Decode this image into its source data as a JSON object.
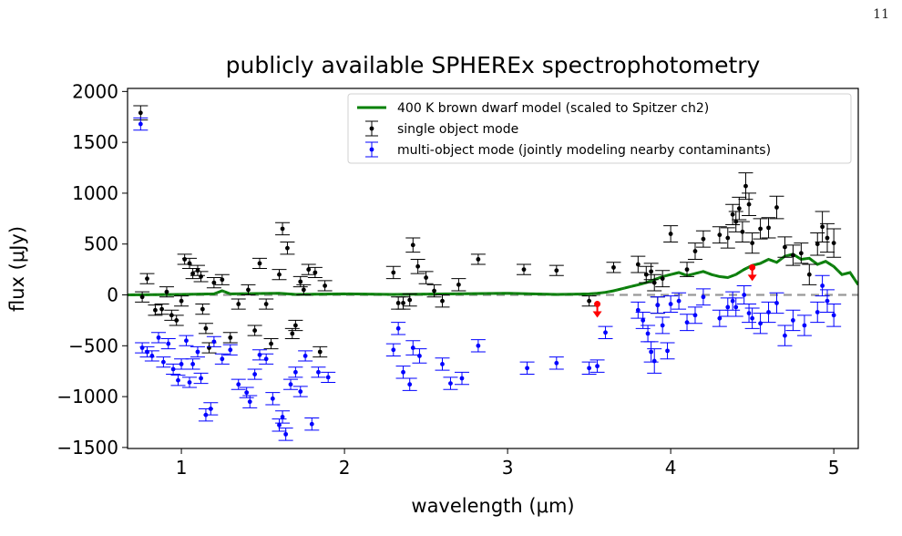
{
  "page": {
    "number": "11"
  },
  "chart_data": {
    "type": "scatter",
    "title": "publicly available SPHEREx spectrophotometry",
    "xlabel": "wavelength (μm)",
    "ylabel": "flux (μJy)",
    "xlim": [
      0.67,
      5.15
    ],
    "ylim": [
      -1510,
      2030
    ],
    "xticks": [
      1,
      2,
      3,
      4,
      5
    ],
    "yticks": [
      -1500,
      -1000,
      -500,
      0,
      500,
      1000,
      1500,
      2000
    ],
    "tick_labels_x": [
      "1",
      "2",
      "3",
      "4",
      "5"
    ],
    "tick_labels_y": [
      "−1500",
      "−1000",
      "−500",
      "0",
      "500",
      "1000",
      "1500",
      "2000"
    ],
    "grid": false,
    "legend_position": "top-right",
    "legend": [
      {
        "label": "400 K brown dwarf model (scaled to Spitzer ch2)",
        "color": "#008000",
        "marker": "line"
      },
      {
        "label": "single object mode",
        "color": "#000000",
        "marker": "errorbar"
      },
      {
        "label": "multi-object mode (jointly modeling nearby contaminants)",
        "color": "#0000ff",
        "marker": "errorbar"
      }
    ],
    "zero_line": {
      "y": 0,
      "color": "#999999",
      "style": "dashed"
    },
    "model": {
      "name": "400 K brown dwarf model (scaled to Spitzer ch2)",
      "color": "#008000",
      "x": [
        0.67,
        1.0,
        1.2,
        1.25,
        1.3,
        1.6,
        1.7,
        2.0,
        2.3,
        3.0,
        3.3,
        3.5,
        3.55,
        3.6,
        3.65,
        3.7,
        3.75,
        3.8,
        3.85,
        3.9,
        3.95,
        4.0,
        4.05,
        4.1,
        4.15,
        4.2,
        4.25,
        4.3,
        4.35,
        4.4,
        4.45,
        4.5,
        4.55,
        4.6,
        4.65,
        4.7,
        4.75,
        4.8,
        4.85,
        4.9,
        4.95,
        5.0,
        5.05,
        5.1,
        5.15
      ],
      "y": [
        0,
        5,
        10,
        40,
        10,
        15,
        5,
        10,
        5,
        15,
        5,
        10,
        15,
        25,
        40,
        60,
        80,
        100,
        120,
        150,
        180,
        200,
        220,
        190,
        210,
        230,
        200,
        180,
        170,
        200,
        250,
        290,
        310,
        350,
        320,
        380,
        400,
        350,
        360,
        300,
        330,
        280,
        200,
        220,
        100
      ]
    },
    "series": [
      {
        "name": "single object mode",
        "color": "#000000",
        "points": [
          [
            0.75,
            1790,
            70
          ],
          [
            0.76,
            -20,
            50
          ],
          [
            0.79,
            160,
            50
          ],
          [
            0.84,
            -150,
            50
          ],
          [
            0.88,
            -140,
            50
          ],
          [
            0.91,
            30,
            50
          ],
          [
            0.94,
            -200,
            50
          ],
          [
            0.97,
            -250,
            50
          ],
          [
            1.0,
            -60,
            50
          ],
          [
            1.02,
            350,
            50
          ],
          [
            1.05,
            310,
            50
          ],
          [
            1.07,
            210,
            50
          ],
          [
            1.1,
            240,
            50
          ],
          [
            1.12,
            180,
            50
          ],
          [
            1.13,
            -140,
            50
          ],
          [
            1.15,
            -330,
            50
          ],
          [
            1.17,
            -520,
            50
          ],
          [
            1.2,
            120,
            50
          ],
          [
            1.25,
            150,
            50
          ],
          [
            1.3,
            -420,
            50
          ],
          [
            1.35,
            -90,
            50
          ],
          [
            1.41,
            50,
            50
          ],
          [
            1.45,
            -350,
            50
          ],
          [
            1.48,
            310,
            50
          ],
          [
            1.52,
            -90,
            50
          ],
          [
            1.55,
            -480,
            50
          ],
          [
            1.6,
            200,
            50
          ],
          [
            1.62,
            650,
            60
          ],
          [
            1.65,
            460,
            60
          ],
          [
            1.68,
            -380,
            50
          ],
          [
            1.7,
            -300,
            50
          ],
          [
            1.73,
            130,
            50
          ],
          [
            1.75,
            50,
            50
          ],
          [
            1.78,
            250,
            50
          ],
          [
            1.82,
            220,
            50
          ],
          [
            1.85,
            -560,
            50
          ],
          [
            1.88,
            90,
            50
          ],
          [
            2.3,
            220,
            60
          ],
          [
            2.33,
            -80,
            60
          ],
          [
            2.36,
            -80,
            60
          ],
          [
            2.4,
            -50,
            60
          ],
          [
            2.42,
            490,
            70
          ],
          [
            2.45,
            280,
            70
          ],
          [
            2.5,
            170,
            60
          ],
          [
            2.55,
            40,
            60
          ],
          [
            2.6,
            -60,
            60
          ],
          [
            2.7,
            100,
            60
          ],
          [
            2.82,
            350,
            50
          ],
          [
            3.1,
            250,
            50
          ],
          [
            3.3,
            240,
            50
          ],
          [
            3.5,
            -60,
            50
          ],
          [
            3.65,
            270,
            50
          ],
          [
            3.8,
            300,
            80
          ],
          [
            3.85,
            200,
            80
          ],
          [
            3.88,
            230,
            80
          ],
          [
            3.9,
            120,
            80
          ],
          [
            3.92,
            -100,
            80
          ],
          [
            3.95,
            160,
            80
          ],
          [
            4.0,
            600,
            80
          ],
          [
            4.1,
            250,
            70
          ],
          [
            4.15,
            430,
            80
          ],
          [
            4.2,
            550,
            80
          ],
          [
            4.3,
            590,
            80
          ],
          [
            4.35,
            560,
            100
          ],
          [
            4.38,
            790,
            100
          ],
          [
            4.4,
            720,
            100
          ],
          [
            4.42,
            850,
            110
          ],
          [
            4.44,
            620,
            100
          ],
          [
            4.46,
            1070,
            130
          ],
          [
            4.48,
            890,
            110
          ],
          [
            4.5,
            510,
            100
          ],
          [
            4.55,
            650,
            100
          ],
          [
            4.6,
            660,
            100
          ],
          [
            4.65,
            860,
            110
          ],
          [
            4.7,
            470,
            100
          ],
          [
            4.75,
            390,
            100
          ],
          [
            4.8,
            410,
            100
          ],
          [
            4.85,
            200,
            100
          ],
          [
            4.9,
            500,
            110
          ],
          [
            4.93,
            670,
            150
          ],
          [
            4.96,
            560,
            140
          ],
          [
            5.0,
            510,
            140
          ]
        ]
      },
      {
        "name": "multi-object mode (jointly modeling nearby contaminants)",
        "color": "#0000ff",
        "points": [
          [
            0.75,
            1680,
            60
          ],
          [
            0.76,
            -520,
            50
          ],
          [
            0.79,
            -560,
            50
          ],
          [
            0.82,
            -600,
            50
          ],
          [
            0.86,
            -420,
            50
          ],
          [
            0.89,
            -660,
            50
          ],
          [
            0.92,
            -480,
            50
          ],
          [
            0.95,
            -730,
            50
          ],
          [
            0.98,
            -840,
            50
          ],
          [
            1.0,
            -680,
            50
          ],
          [
            1.03,
            -450,
            50
          ],
          [
            1.05,
            -860,
            50
          ],
          [
            1.07,
            -680,
            50
          ],
          [
            1.1,
            -560,
            50
          ],
          [
            1.12,
            -820,
            50
          ],
          [
            1.15,
            -1180,
            60
          ],
          [
            1.18,
            -1120,
            60
          ],
          [
            1.2,
            -460,
            50
          ],
          [
            1.25,
            -630,
            50
          ],
          [
            1.3,
            -540,
            50
          ],
          [
            1.35,
            -880,
            50
          ],
          [
            1.4,
            -960,
            50
          ],
          [
            1.42,
            -1050,
            60
          ],
          [
            1.45,
            -780,
            50
          ],
          [
            1.48,
            -590,
            50
          ],
          [
            1.52,
            -630,
            50
          ],
          [
            1.56,
            -1020,
            60
          ],
          [
            1.6,
            -1280,
            60
          ],
          [
            1.62,
            -1200,
            60
          ],
          [
            1.64,
            -1370,
            60
          ],
          [
            1.67,
            -880,
            50
          ],
          [
            1.7,
            -760,
            50
          ],
          [
            1.73,
            -950,
            50
          ],
          [
            1.76,
            -600,
            50
          ],
          [
            1.8,
            -1270,
            60
          ],
          [
            1.84,
            -760,
            50
          ],
          [
            1.9,
            -810,
            50
          ],
          [
            2.3,
            -540,
            60
          ],
          [
            2.33,
            -330,
            60
          ],
          [
            2.36,
            -760,
            60
          ],
          [
            2.4,
            -880,
            60
          ],
          [
            2.42,
            -520,
            70
          ],
          [
            2.46,
            -600,
            70
          ],
          [
            2.6,
            -680,
            60
          ],
          [
            2.65,
            -870,
            60
          ],
          [
            2.72,
            -820,
            60
          ],
          [
            2.82,
            -500,
            60
          ],
          [
            3.12,
            -720,
            60
          ],
          [
            3.3,
            -670,
            60
          ],
          [
            3.5,
            -720,
            60
          ],
          [
            3.55,
            -700,
            60
          ],
          [
            3.6,
            -370,
            60
          ],
          [
            3.8,
            -150,
            80
          ],
          [
            3.83,
            -250,
            80
          ],
          [
            3.86,
            -380,
            80
          ],
          [
            3.88,
            -560,
            100
          ],
          [
            3.9,
            -650,
            120
          ],
          [
            3.92,
            -100,
            80
          ],
          [
            3.95,
            -300,
            80
          ],
          [
            3.98,
            -550,
            80
          ],
          [
            4.0,
            -90,
            80
          ],
          [
            4.05,
            -60,
            80
          ],
          [
            4.1,
            -270,
            80
          ],
          [
            4.15,
            -200,
            80
          ],
          [
            4.2,
            -20,
            80
          ],
          [
            4.3,
            -230,
            80
          ],
          [
            4.35,
            -120,
            90
          ],
          [
            4.38,
            -60,
            90
          ],
          [
            4.4,
            -120,
            90
          ],
          [
            4.45,
            0,
            90
          ],
          [
            4.48,
            -180,
            90
          ],
          [
            4.5,
            -230,
            100
          ],
          [
            4.55,
            -280,
            100
          ],
          [
            4.6,
            -170,
            100
          ],
          [
            4.65,
            -80,
            100
          ],
          [
            4.7,
            -400,
            100
          ],
          [
            4.75,
            -250,
            100
          ],
          [
            4.82,
            -300,
            100
          ],
          [
            4.9,
            -170,
            100
          ],
          [
            4.93,
            90,
            100
          ],
          [
            4.96,
            -60,
            110
          ],
          [
            5.0,
            -200,
            110
          ]
        ]
      }
    ],
    "upper_limits": {
      "color": "#ff0000",
      "points": [
        [
          3.55,
          -90
        ],
        [
          4.5,
          270
        ]
      ]
    }
  }
}
